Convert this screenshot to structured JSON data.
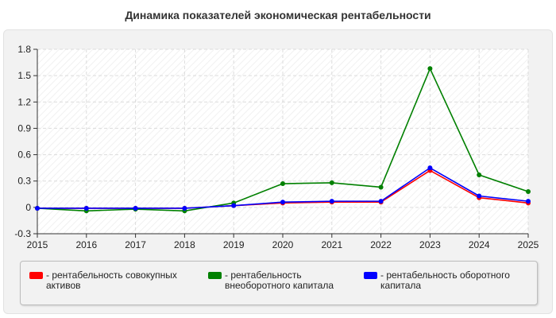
{
  "chart_data": {
    "type": "line",
    "title": "Динамика показателей экономическая рентабельности",
    "xlabel": "",
    "ylabel": "",
    "x": [
      "2015",
      "2016",
      "2017",
      "2018",
      "2019",
      "2020",
      "2021",
      "2022",
      "2023",
      "2024",
      "2025"
    ],
    "ylim": [
      -0.3,
      1.8
    ],
    "yticks": [
      "1.8",
      "1.5",
      "1.2",
      "0.9",
      "0.6",
      "0.3",
      "0",
      "-0.3"
    ],
    "grid": true,
    "legend_position": "bottom",
    "series": [
      {
        "name": "- рентабельность совокупных\nактивов",
        "color": "#ff0000",
        "values": [
          -0.01,
          -0.01,
          -0.01,
          -0.01,
          0.02,
          0.05,
          0.06,
          0.06,
          0.42,
          0.11,
          0.05
        ]
      },
      {
        "name": "- рентабельность\nвнеоборотного капитала",
        "color": "#008000",
        "values": [
          -0.01,
          -0.04,
          -0.02,
          -0.04,
          0.05,
          0.27,
          0.28,
          0.23,
          1.58,
          0.37,
          0.18
        ]
      },
      {
        "name": "- рентабельность оборотного\nкапитала",
        "color": "#0000ff",
        "values": [
          -0.01,
          -0.01,
          -0.01,
          -0.01,
          0.02,
          0.06,
          0.07,
          0.07,
          0.45,
          0.13,
          0.07
        ]
      }
    ]
  }
}
